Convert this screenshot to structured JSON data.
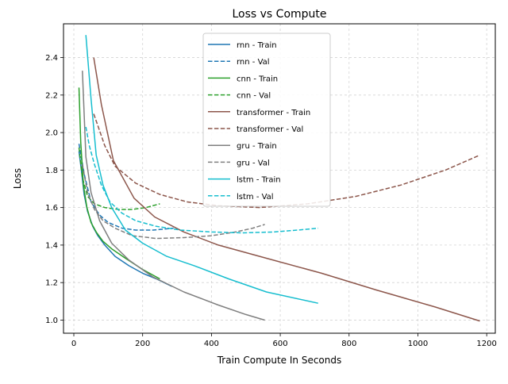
{
  "chart_data": {
    "type": "line",
    "title": "Loss vs Compute",
    "xlabel": "Train Compute In Seconds",
    "ylabel": "Loss",
    "xlim": [
      -30,
      1225
    ],
    "ylim": [
      0.93,
      2.58
    ],
    "xticks": [
      0,
      200,
      400,
      600,
      800,
      1000,
      1200
    ],
    "yticks": [
      1.0,
      1.2,
      1.4,
      1.6,
      1.8,
      2.0,
      2.2,
      2.4
    ],
    "xtick_labels": [
      "0",
      "200",
      "400",
      "600",
      "800",
      "1000",
      "1200"
    ],
    "ytick_labels": [
      "1.0",
      "1.2",
      "1.4",
      "1.6",
      "1.8",
      "2.0",
      "2.2",
      "2.4"
    ],
    "grid": true,
    "legend_position": "top-center",
    "series": [
      {
        "name": "rnn - Train",
        "color": "#1f77b4",
        "dash": "solid",
        "x": [
          15,
          22,
          30,
          40,
          55,
          70,
          90,
          120,
          160,
          200,
          240,
          285
        ],
        "y": [
          1.9,
          1.8,
          1.67,
          1.58,
          1.5,
          1.45,
          1.4,
          1.34,
          1.29,
          1.25,
          1.22,
          1.18
        ]
      },
      {
        "name": "rnn - Val",
        "color": "#1f77b4",
        "dash": "dashed",
        "x": [
          15,
          30,
          50,
          75,
          100,
          140,
          180,
          230,
          290
        ],
        "y": [
          1.94,
          1.78,
          1.63,
          1.56,
          1.52,
          1.49,
          1.48,
          1.48,
          1.49
        ]
      },
      {
        "name": "cnn - Train",
        "color": "#2ca02c",
        "dash": "solid",
        "x": [
          15,
          20,
          28,
          38,
          50,
          65,
          85,
          110,
          150,
          200,
          250
        ],
        "y": [
          2.24,
          1.95,
          1.72,
          1.6,
          1.52,
          1.47,
          1.42,
          1.38,
          1.33,
          1.27,
          1.22
        ]
      },
      {
        "name": "cnn - Val",
        "color": "#2ca02c",
        "dash": "dashed",
        "x": [
          15,
          25,
          40,
          60,
          90,
          130,
          170,
          210,
          250
        ],
        "y": [
          1.92,
          1.76,
          1.66,
          1.62,
          1.6,
          1.59,
          1.59,
          1.6,
          1.62
        ]
      },
      {
        "name": "transformer - Train",
        "color": "#8c564b",
        "dash": "solid",
        "x": [
          58,
          80,
          115,
          175,
          235,
          320,
          420,
          560,
          720,
          880,
          1050,
          1180
        ],
        "y": [
          2.4,
          2.15,
          1.85,
          1.65,
          1.55,
          1.47,
          1.4,
          1.33,
          1.25,
          1.16,
          1.07,
          0.995
        ]
      },
      {
        "name": "transformer - Val",
        "color": "#8c564b",
        "dash": "dashed",
        "x": [
          58,
          90,
          120,
          180,
          250,
          330,
          420,
          540,
          680,
          820,
          950,
          1080,
          1180
        ],
        "y": [
          2.1,
          1.93,
          1.82,
          1.73,
          1.67,
          1.63,
          1.61,
          1.6,
          1.62,
          1.66,
          1.72,
          1.8,
          1.88
        ]
      },
      {
        "name": "gru - Train",
        "color": "#7f7f7f",
        "dash": "solid",
        "x": [
          25,
          35,
          50,
          75,
          110,
          160,
          230,
          320,
          420,
          500,
          555
        ],
        "y": [
          2.33,
          1.87,
          1.68,
          1.53,
          1.41,
          1.32,
          1.23,
          1.15,
          1.08,
          1.03,
          1.0
        ]
      },
      {
        "name": "gru - Val",
        "color": "#7f7f7f",
        "dash": "dashed",
        "x": [
          25,
          40,
          60,
          85,
          120,
          170,
          240,
          320,
          400,
          470,
          520,
          555
        ],
        "y": [
          1.83,
          1.68,
          1.59,
          1.53,
          1.49,
          1.45,
          1.435,
          1.44,
          1.45,
          1.47,
          1.49,
          1.51
        ]
      },
      {
        "name": "lstm - Train",
        "color": "#17becf",
        "dash": "solid",
        "x": [
          35,
          50,
          65,
          85,
          110,
          150,
          200,
          270,
          350,
          450,
          560,
          710
        ],
        "y": [
          2.52,
          2.18,
          1.88,
          1.72,
          1.6,
          1.48,
          1.41,
          1.34,
          1.29,
          1.22,
          1.15,
          1.09
        ]
      },
      {
        "name": "lstm - Val",
        "color": "#17becf",
        "dash": "dashed",
        "x": [
          35,
          45,
          60,
          80,
          105,
          140,
          180,
          240,
          310,
          400,
          490,
          580,
          650,
          710
        ],
        "y": [
          2.03,
          1.93,
          1.83,
          1.72,
          1.63,
          1.57,
          1.53,
          1.5,
          1.48,
          1.47,
          1.465,
          1.47,
          1.48,
          1.49
        ]
      }
    ]
  }
}
